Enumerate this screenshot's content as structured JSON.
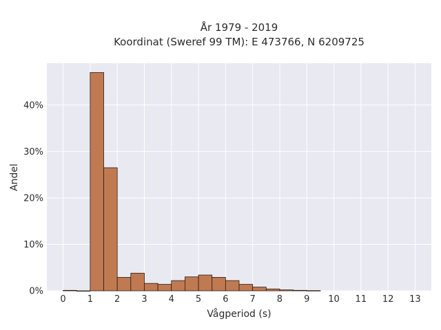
{
  "chart_data": {
    "type": "bar",
    "title": [
      "År 1979 - 2019",
      "Koordinat (Sweref 99 TM): E 473766, N 6209725"
    ],
    "xlabel": "Vågperiod (s)",
    "ylabel": "Andel",
    "xlim": [
      -0.6,
      13.6
    ],
    "ylim": [
      0,
      49
    ],
    "grid": true,
    "bin_width": 0.5,
    "bins": [
      {
        "x0": 0.0,
        "value": 0.1
      },
      {
        "x0": 0.5,
        "value": 0.0
      },
      {
        "x0": 1.0,
        "value": 47.0
      },
      {
        "x0": 1.5,
        "value": 26.5
      },
      {
        "x0": 2.0,
        "value": 2.9
      },
      {
        "x0": 2.5,
        "value": 3.8
      },
      {
        "x0": 3.0,
        "value": 1.6
      },
      {
        "x0": 3.5,
        "value": 1.4
      },
      {
        "x0": 4.0,
        "value": 2.2
      },
      {
        "x0": 4.5,
        "value": 3.0
      },
      {
        "x0": 5.0,
        "value": 3.4
      },
      {
        "x0": 5.5,
        "value": 2.9
      },
      {
        "x0": 6.0,
        "value": 2.2
      },
      {
        "x0": 6.5,
        "value": 1.4
      },
      {
        "x0": 7.0,
        "value": 0.8
      },
      {
        "x0": 7.5,
        "value": 0.4
      },
      {
        "x0": 8.0,
        "value": 0.2
      },
      {
        "x0": 8.5,
        "value": 0.1
      },
      {
        "x0": 9.0,
        "value": 0.05
      }
    ],
    "x_ticks": [
      0,
      1,
      2,
      3,
      4,
      5,
      6,
      7,
      8,
      9,
      10,
      11,
      12,
      13
    ],
    "y_ticks": [
      {
        "value": 0,
        "label": "0%"
      },
      {
        "value": 10,
        "label": "10%"
      },
      {
        "value": 20,
        "label": "20%"
      },
      {
        "value": 30,
        "label": "30%"
      },
      {
        "value": 40,
        "label": "40%"
      }
    ],
    "colors": {
      "bar_fill": "#c07a52",
      "bar_edge": "#2b1a12",
      "plot_bg": "#e9e9f1",
      "grid": "#ffffff"
    }
  }
}
